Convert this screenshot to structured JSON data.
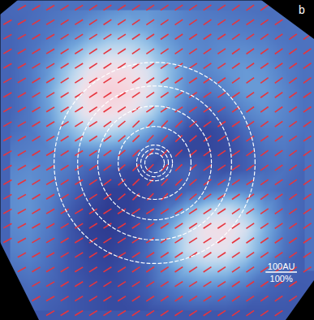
{
  "chart_data": {
    "type": "heatmap",
    "title": "b",
    "xlim": [
      -500,
      500
    ],
    "ylim": [
      -509,
      509
    ],
    "tick_labels": false,
    "color_range": [
      0,
      1
    ],
    "cells": [
      [
        null,
        0.32,
        0.34,
        0.36,
        0.38,
        0.42,
        0.45,
        0.45,
        0.42,
        0.38,
        0.36,
        0.35,
        0.34,
        0.33,
        null,
        null
      ],
      [
        0.3,
        0.33,
        0.36,
        0.4,
        0.46,
        0.52,
        0.54,
        0.5,
        0.44,
        0.4,
        0.38,
        0.38,
        0.37,
        0.36,
        0.34,
        null
      ],
      [
        0.3,
        0.34,
        0.4,
        0.5,
        0.62,
        0.7,
        0.7,
        0.62,
        0.5,
        0.42,
        0.4,
        0.42,
        0.42,
        0.4,
        0.36,
        0.34
      ],
      [
        0.3,
        0.36,
        0.46,
        0.62,
        0.8,
        0.9,
        0.88,
        0.76,
        0.58,
        0.44,
        0.4,
        0.44,
        0.46,
        0.44,
        0.38,
        0.34
      ],
      [
        0.3,
        0.36,
        0.5,
        0.7,
        0.92,
        1.0,
        0.96,
        0.8,
        0.58,
        0.42,
        0.36,
        0.4,
        0.46,
        0.46,
        0.4,
        0.34
      ],
      [
        0.3,
        0.36,
        0.48,
        0.66,
        0.86,
        0.92,
        0.86,
        0.7,
        0.5,
        0.34,
        0.28,
        0.32,
        0.4,
        0.44,
        0.4,
        0.34
      ],
      [
        0.32,
        0.36,
        0.44,
        0.54,
        0.66,
        0.68,
        0.62,
        0.5,
        0.36,
        0.24,
        0.2,
        0.24,
        0.32,
        0.38,
        0.38,
        0.34
      ],
      [
        0.36,
        0.38,
        0.4,
        0.42,
        0.44,
        0.44,
        0.4,
        0.32,
        0.24,
        0.2,
        0.2,
        0.22,
        0.28,
        0.34,
        0.36,
        0.32
      ],
      [
        0.4,
        0.42,
        0.4,
        0.36,
        0.3,
        0.26,
        0.22,
        0.22,
        0.28,
        0.3,
        0.26,
        0.24,
        0.28,
        0.32,
        0.34,
        0.3
      ],
      [
        0.42,
        0.44,
        0.4,
        0.32,
        0.24,
        0.18,
        0.18,
        0.22,
        0.26,
        0.3,
        0.34,
        0.4,
        0.4,
        0.36,
        0.32,
        0.3
      ],
      [
        0.42,
        0.44,
        0.38,
        0.28,
        0.2,
        0.16,
        0.18,
        0.24,
        0.36,
        0.52,
        0.66,
        0.72,
        0.62,
        0.46,
        0.34,
        0.3
      ],
      [
        0.4,
        0.42,
        0.36,
        0.26,
        0.18,
        0.16,
        0.2,
        0.3,
        0.48,
        0.7,
        0.86,
        0.88,
        0.74,
        0.52,
        0.36,
        0.3
      ],
      [
        0.38,
        0.4,
        0.34,
        0.26,
        0.2,
        0.18,
        0.22,
        0.32,
        0.5,
        0.7,
        0.8,
        0.8,
        0.66,
        0.48,
        0.34,
        0.28
      ],
      [
        0.34,
        0.36,
        0.32,
        0.26,
        0.22,
        0.2,
        0.24,
        0.3,
        0.42,
        0.54,
        0.6,
        0.58,
        0.48,
        0.38,
        0.3,
        0.28
      ],
      [
        null,
        0.32,
        0.3,
        0.26,
        0.24,
        0.22,
        0.24,
        0.28,
        0.34,
        0.38,
        0.4,
        0.38,
        0.34,
        0.3,
        0.28,
        null
      ],
      [
        null,
        null,
        0.28,
        0.26,
        0.24,
        0.22,
        0.22,
        0.24,
        0.26,
        0.28,
        0.28,
        0.28,
        0.26,
        0.26,
        0.26,
        null
      ]
    ],
    "vectors": {
      "percent": 30,
      "color": "#e8343c",
      "angle": [
        [
          null,
          30,
          31,
          31,
          32,
          32,
          33,
          33,
          33,
          34,
          34,
          34,
          34,
          34,
          34,
          34,
          35,
          35,
          35,
          null,
          null,
          null
        ],
        [
          30,
          30,
          31,
          31,
          32,
          32,
          33,
          33,
          33,
          34,
          34,
          34,
          34,
          34,
          34,
          34,
          35,
          35,
          35,
          35,
          null,
          null
        ],
        [
          30,
          30,
          31,
          31,
          32,
          32,
          33,
          33,
          33,
          34,
          34,
          34,
          34,
          34,
          34,
          34,
          35,
          35,
          35,
          35,
          35,
          35
        ],
        [
          30,
          30,
          31,
          31,
          32,
          32,
          33,
          33,
          33,
          34,
          34,
          34,
          34,
          34,
          34,
          34,
          35,
          35,
          35,
          35,
          35,
          35
        ],
        [
          30,
          30,
          31,
          31,
          32,
          32,
          33,
          33,
          33,
          34,
          34,
          34,
          34,
          34,
          34,
          34,
          35,
          35,
          35,
          35,
          35,
          35
        ],
        [
          30,
          30,
          31,
          31,
          32,
          32,
          33,
          33,
          33,
          34,
          34,
          34,
          34,
          34,
          34,
          34,
          35,
          35,
          35,
          35,
          35,
          35
        ],
        [
          30,
          30,
          31,
          31,
          32,
          32,
          33,
          33,
          33,
          34,
          34,
          34,
          34,
          34,
          34,
          34,
          35,
          35,
          35,
          35,
          35,
          35
        ],
        [
          30,
          30,
          31,
          31,
          32,
          32,
          33,
          33,
          33,
          34,
          34,
          34,
          34,
          34,
          34,
          34,
          35,
          35,
          35,
          35,
          35,
          35
        ],
        [
          30,
          30,
          31,
          31,
          32,
          32,
          33,
          36,
          40,
          44,
          46,
          46,
          44,
          40,
          36,
          34,
          34,
          35,
          35,
          35,
          35,
          35
        ],
        [
          30,
          30,
          31,
          31,
          32,
          32,
          33,
          36,
          40,
          44,
          46,
          46,
          44,
          40,
          36,
          34,
          34,
          35,
          35,
          35,
          35,
          35
        ],
        [
          30,
          30,
          31,
          31,
          32,
          32,
          33,
          36,
          40,
          44,
          46,
          46,
          44,
          40,
          36,
          34,
          34,
          35,
          35,
          35,
          35,
          35
        ],
        [
          30,
          30,
          31,
          31,
          32,
          32,
          33,
          36,
          40,
          44,
          46,
          46,
          44,
          40,
          36,
          34,
          34,
          35,
          35,
          35,
          35,
          35
        ],
        [
          30,
          30,
          31,
          31,
          32,
          32,
          33,
          36,
          40,
          44,
          46,
          46,
          44,
          40,
          36,
          34,
          34,
          35,
          35,
          35,
          35,
          35
        ],
        [
          30,
          30,
          31,
          31,
          32,
          32,
          33,
          36,
          40,
          44,
          46,
          46,
          44,
          40,
          36,
          34,
          34,
          35,
          35,
          35,
          35,
          35
        ],
        [
          29,
          29,
          30,
          30,
          31,
          31,
          32,
          32,
          32,
          33,
          33,
          33,
          33,
          33,
          33,
          33,
          34,
          34,
          34,
          34,
          34,
          34
        ],
        [
          29,
          29,
          30,
          30,
          31,
          31,
          32,
          32,
          32,
          33,
          33,
          33,
          33,
          33,
          33,
          33,
          34,
          34,
          34,
          34,
          34,
          34
        ],
        [
          29,
          29,
          30,
          30,
          31,
          31,
          32,
          32,
          32,
          33,
          33,
          33,
          33,
          33,
          33,
          33,
          34,
          34,
          34,
          34,
          34,
          34
        ],
        [
          null,
          29,
          30,
          30,
          31,
          31,
          32,
          32,
          32,
          33,
          33,
          33,
          33,
          33,
          33,
          33,
          34,
          34,
          34,
          34,
          34,
          34
        ],
        [
          null,
          29,
          30,
          30,
          31,
          31,
          32,
          32,
          32,
          33,
          33,
          33,
          33,
          33,
          33,
          33,
          34,
          34,
          34,
          34,
          34,
          34
        ],
        [
          null,
          null,
          30,
          30,
          31,
          31,
          32,
          32,
          32,
          33,
          33,
          33,
          33,
          33,
          33,
          33,
          34,
          34,
          34,
          34,
          34,
          null
        ],
        [
          null,
          null,
          30,
          30,
          31,
          31,
          32,
          32,
          32,
          33,
          33,
          33,
          33,
          33,
          33,
          33,
          34,
          34,
          34,
          34,
          34,
          null
        ],
        [
          null,
          null,
          null,
          30,
          31,
          31,
          32,
          32,
          32,
          33,
          33,
          33,
          33,
          33,
          33,
          33,
          34,
          34,
          34,
          34,
          null,
          null
        ]
      ]
    },
    "contours": {
      "center": [
        -9,
        -8
      ],
      "radii": [
        31,
        44,
        57,
        116,
        181,
        245,
        320
      ],
      "color": "#ffffff",
      "line_style": "dashed"
    },
    "scale_bar": {
      "length": 100,
      "percent": 100,
      "labels": [
        "100AU",
        "100%"
      ]
    }
  }
}
